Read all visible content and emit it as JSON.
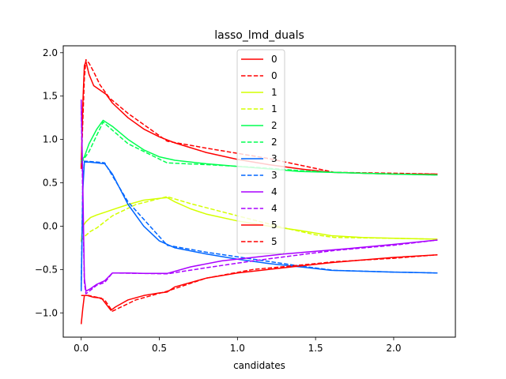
{
  "chart_data": {
    "type": "line",
    "title": "lasso_lmd_duals",
    "xlabel": "candidates",
    "ylabel": "",
    "xlim": [
      -0.115,
      2.395
    ],
    "ylim": [
      -1.28,
      2.08
    ],
    "xticks": [
      0.0,
      0.5,
      1.0,
      1.5,
      2.0
    ],
    "xtick_labels": [
      "0.0",
      "0.5",
      "1.0",
      "1.5",
      "2.0"
    ],
    "yticks": [
      -1.0,
      -0.5,
      0.0,
      0.5,
      1.0,
      1.5,
      2.0
    ],
    "ytick_labels": [
      "−1.0",
      "−0.5",
      "0.0",
      "0.5",
      "1.0",
      "1.5",
      "2.0"
    ],
    "grid": false,
    "legend_position": "top-center",
    "series": [
      {
        "name": "0",
        "color": "#ff0000",
        "dash": "solid",
        "points": [
          [
            0.0,
            0.68
          ],
          [
            0.01,
            1.4
          ],
          [
            0.02,
            1.85
          ],
          [
            0.03,
            1.9
          ],
          [
            0.05,
            1.75
          ],
          [
            0.08,
            1.62
          ],
          [
            0.12,
            1.57
          ],
          [
            0.16,
            1.52
          ],
          [
            0.2,
            1.42
          ],
          [
            0.3,
            1.25
          ],
          [
            0.4,
            1.12
          ],
          [
            0.5,
            1.03
          ],
          [
            0.6,
            0.96
          ],
          [
            0.8,
            0.85
          ],
          [
            1.0,
            0.77
          ],
          [
            1.2,
            0.71
          ],
          [
            1.4,
            0.66
          ],
          [
            1.6,
            0.62
          ],
          [
            1.8,
            0.61
          ],
          [
            2.0,
            0.6
          ],
          [
            2.28,
            0.6
          ]
        ]
      },
      {
        "name": "0",
        "color": "#ff0000",
        "dash": "dashed",
        "points": [
          [
            0.0,
            0.66
          ],
          [
            0.01,
            1.2
          ],
          [
            0.02,
            1.7
          ],
          [
            0.03,
            1.92
          ],
          [
            0.05,
            1.88
          ],
          [
            0.08,
            1.78
          ],
          [
            0.12,
            1.63
          ],
          [
            0.18,
            1.48
          ],
          [
            0.3,
            1.3
          ],
          [
            0.55,
            0.98
          ],
          [
            0.8,
            0.9
          ],
          [
            1.2,
            0.78
          ],
          [
            1.62,
            0.62
          ],
          [
            2.0,
            0.61
          ],
          [
            2.28,
            0.6
          ]
        ]
      },
      {
        "name": "1",
        "color": "#d4ff00",
        "dash": "solid",
        "points": [
          [
            0.0,
            -0.18
          ],
          [
            0.01,
            0.0
          ],
          [
            0.03,
            0.05
          ],
          [
            0.06,
            0.1
          ],
          [
            0.1,
            0.13
          ],
          [
            0.15,
            0.16
          ],
          [
            0.2,
            0.19
          ],
          [
            0.3,
            0.25
          ],
          [
            0.4,
            0.3
          ],
          [
            0.5,
            0.32
          ],
          [
            0.55,
            0.33
          ],
          [
            0.6,
            0.28
          ],
          [
            0.7,
            0.2
          ],
          [
            0.8,
            0.14
          ],
          [
            1.0,
            0.06
          ],
          [
            1.2,
            0.0
          ],
          [
            1.4,
            -0.05
          ],
          [
            1.6,
            -0.11
          ],
          [
            1.8,
            -0.13
          ],
          [
            2.0,
            -0.14
          ],
          [
            2.28,
            -0.15
          ]
        ]
      },
      {
        "name": "1",
        "color": "#d4ff00",
        "dash": "dashed",
        "points": [
          [
            0.0,
            -0.17
          ],
          [
            0.02,
            -0.12
          ],
          [
            0.06,
            -0.06
          ],
          [
            0.1,
            -0.02
          ],
          [
            0.2,
            0.12
          ],
          [
            0.35,
            0.25
          ],
          [
            0.55,
            0.34
          ],
          [
            0.7,
            0.26
          ],
          [
            1.0,
            0.12
          ],
          [
            1.3,
            -0.02
          ],
          [
            1.5,
            -0.1
          ],
          [
            1.62,
            -0.13
          ],
          [
            2.0,
            -0.14
          ],
          [
            2.28,
            -0.15
          ]
        ]
      },
      {
        "name": "2",
        "color": "#00ff50",
        "dash": "solid",
        "points": [
          [
            0.0,
            0.75
          ],
          [
            0.02,
            0.8
          ],
          [
            0.05,
            0.95
          ],
          [
            0.1,
            1.12
          ],
          [
            0.14,
            1.22
          ],
          [
            0.2,
            1.15
          ],
          [
            0.3,
            1.0
          ],
          [
            0.4,
            0.88
          ],
          [
            0.5,
            0.8
          ],
          [
            0.6,
            0.76
          ],
          [
            0.8,
            0.72
          ],
          [
            1.0,
            0.69
          ],
          [
            1.2,
            0.66
          ],
          [
            1.4,
            0.63
          ],
          [
            1.6,
            0.62
          ],
          [
            1.8,
            0.61
          ],
          [
            2.0,
            0.6
          ],
          [
            2.28,
            0.59
          ]
        ]
      },
      {
        "name": "2",
        "color": "#00ff50",
        "dash": "dashed",
        "points": [
          [
            0.0,
            0.73
          ],
          [
            0.05,
            0.86
          ],
          [
            0.1,
            1.05
          ],
          [
            0.14,
            1.2
          ],
          [
            0.3,
            0.95
          ],
          [
            0.55,
            0.73
          ],
          [
            0.8,
            0.71
          ],
          [
            1.1,
            0.68
          ],
          [
            1.4,
            0.64
          ],
          [
            1.62,
            0.62
          ],
          [
            2.0,
            0.6
          ],
          [
            2.28,
            0.59
          ]
        ]
      },
      {
        "name": "3",
        "color": "#0066ff",
        "dash": "solid",
        "points": [
          [
            0.0,
            -0.75
          ],
          [
            0.01,
            0.4
          ],
          [
            0.02,
            0.74
          ],
          [
            0.05,
            0.74
          ],
          [
            0.1,
            0.73
          ],
          [
            0.15,
            0.72
          ],
          [
            0.2,
            0.6
          ],
          [
            0.3,
            0.25
          ],
          [
            0.4,
            0.0
          ],
          [
            0.5,
            -0.17
          ],
          [
            0.6,
            -0.25
          ],
          [
            0.8,
            -0.32
          ],
          [
            1.0,
            -0.38
          ],
          [
            1.2,
            -0.43
          ],
          [
            1.4,
            -0.47
          ],
          [
            1.6,
            -0.51
          ],
          [
            1.8,
            -0.52
          ],
          [
            2.0,
            -0.53
          ],
          [
            2.28,
            -0.54
          ]
        ]
      },
      {
        "name": "3",
        "color": "#0066ff",
        "dash": "dashed",
        "points": [
          [
            0.0,
            -0.7
          ],
          [
            0.01,
            0.5
          ],
          [
            0.02,
            0.75
          ],
          [
            0.1,
            0.74
          ],
          [
            0.15,
            0.73
          ],
          [
            0.3,
            0.28
          ],
          [
            0.55,
            -0.22
          ],
          [
            0.8,
            -0.3
          ],
          [
            1.1,
            -0.38
          ],
          [
            1.4,
            -0.46
          ],
          [
            1.62,
            -0.51
          ],
          [
            2.0,
            -0.53
          ],
          [
            2.28,
            -0.54
          ]
        ]
      },
      {
        "name": "4",
        "color": "#aa00ff",
        "dash": "solid",
        "points": [
          [
            0.0,
            1.46
          ],
          [
            0.01,
            0.5
          ],
          [
            0.02,
            -0.6
          ],
          [
            0.03,
            -0.75
          ],
          [
            0.06,
            -0.72
          ],
          [
            0.1,
            -0.67
          ],
          [
            0.15,
            -0.63
          ],
          [
            0.2,
            -0.54
          ],
          [
            0.3,
            -0.54
          ],
          [
            0.4,
            -0.545
          ],
          [
            0.55,
            -0.545
          ],
          [
            0.7,
            -0.47
          ],
          [
            0.9,
            -0.4
          ],
          [
            1.1,
            -0.36
          ],
          [
            1.3,
            -0.32
          ],
          [
            1.5,
            -0.29
          ],
          [
            1.7,
            -0.26
          ],
          [
            2.0,
            -0.21
          ],
          [
            2.28,
            -0.16
          ]
        ]
      },
      {
        "name": "4",
        "color": "#aa00ff",
        "dash": "dashed",
        "points": [
          [
            0.0,
            1.4
          ],
          [
            0.01,
            0.3
          ],
          [
            0.02,
            -0.65
          ],
          [
            0.03,
            -0.78
          ],
          [
            0.1,
            -0.68
          ],
          [
            0.15,
            -0.65
          ],
          [
            0.2,
            -0.54
          ],
          [
            0.55,
            -0.55
          ],
          [
            0.8,
            -0.48
          ],
          [
            1.1,
            -0.4
          ],
          [
            1.4,
            -0.33
          ],
          [
            1.62,
            -0.28
          ],
          [
            2.0,
            -0.22
          ],
          [
            2.28,
            -0.16
          ]
        ]
      },
      {
        "name": "5",
        "color": "#ff0000",
        "dash": "solid",
        "points": [
          [
            0.0,
            -1.13
          ],
          [
            0.01,
            -0.95
          ],
          [
            0.02,
            -0.8
          ],
          [
            0.04,
            -0.8
          ],
          [
            0.08,
            -0.82
          ],
          [
            0.13,
            -0.83
          ],
          [
            0.16,
            -0.9
          ],
          [
            0.19,
            -0.97
          ],
          [
            0.22,
            -0.93
          ],
          [
            0.3,
            -0.85
          ],
          [
            0.4,
            -0.8
          ],
          [
            0.5,
            -0.77
          ],
          [
            0.55,
            -0.76
          ],
          [
            0.6,
            -0.7
          ],
          [
            0.8,
            -0.6
          ],
          [
            1.0,
            -0.54
          ],
          [
            1.2,
            -0.5
          ],
          [
            1.4,
            -0.46
          ],
          [
            1.6,
            -0.42
          ],
          [
            1.8,
            -0.39
          ],
          [
            2.0,
            -0.36
          ],
          [
            2.28,
            -0.33
          ]
        ]
      },
      {
        "name": "5",
        "color": "#ff0000",
        "dash": "dashed",
        "points": [
          [
            0.0,
            -0.8
          ],
          [
            0.05,
            -0.8
          ],
          [
            0.1,
            -0.82
          ],
          [
            0.15,
            -0.85
          ],
          [
            0.2,
            -0.98
          ],
          [
            0.35,
            -0.85
          ],
          [
            0.55,
            -0.75
          ],
          [
            0.8,
            -0.6
          ],
          [
            1.1,
            -0.5
          ],
          [
            1.4,
            -0.45
          ],
          [
            1.62,
            -0.41
          ],
          [
            2.0,
            -0.37
          ],
          [
            2.28,
            -0.33
          ]
        ]
      }
    ]
  }
}
